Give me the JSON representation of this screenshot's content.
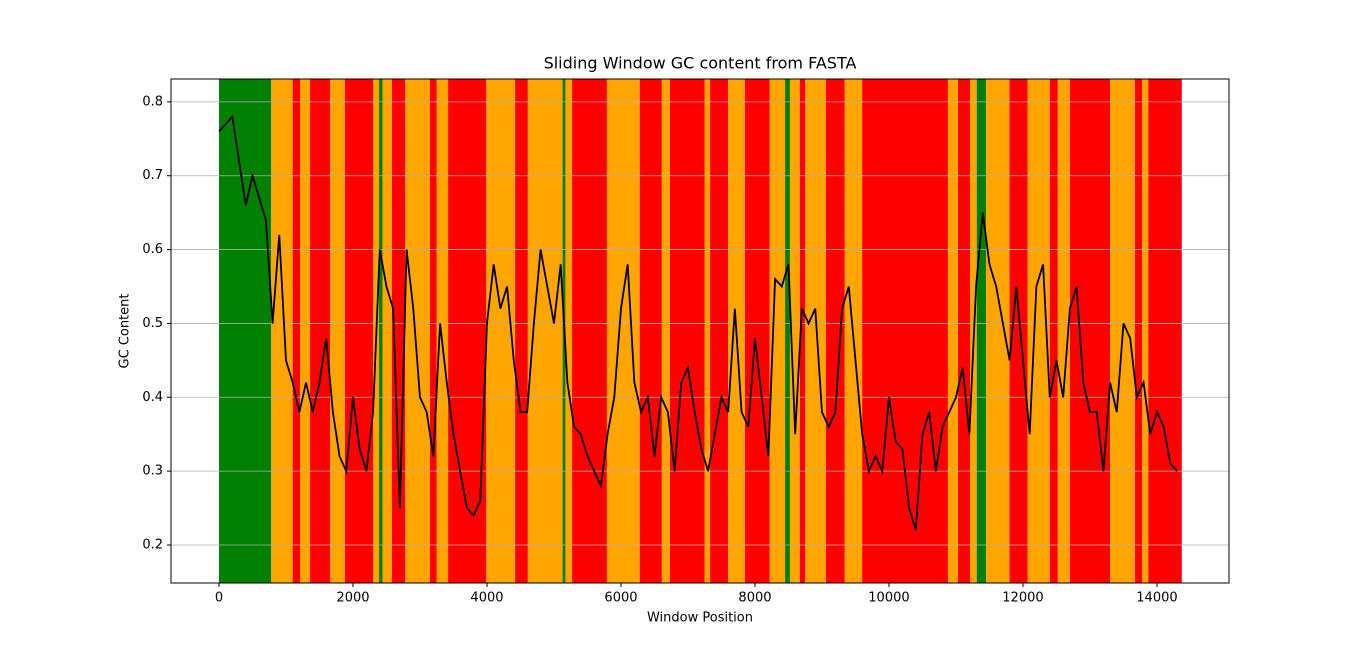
{
  "chart_data": {
    "type": "line",
    "title": "Sliding Window GC content from FASTA",
    "xlabel": "Window Position",
    "ylabel": "GC Content",
    "xlim": [
      -716,
      15075
    ],
    "ylim": [
      0.1485,
      0.831
    ],
    "xticks": [
      0,
      2000,
      4000,
      6000,
      8000,
      10000,
      12000,
      14000
    ],
    "yticks": [
      0.2,
      0.3,
      0.4,
      0.5,
      0.6,
      0.7,
      0.8
    ],
    "grid": "y",
    "bands": [
      {
        "start": 0,
        "end": 780,
        "color": "green"
      },
      {
        "start": 780,
        "end": 940,
        "color": "orange"
      },
      {
        "start": 940,
        "end": 1100,
        "color": "orange"
      },
      {
        "start": 1100,
        "end": 1210,
        "color": "red"
      },
      {
        "start": 1210,
        "end": 1360,
        "color": "orange"
      },
      {
        "start": 1360,
        "end": 1660,
        "color": "red"
      },
      {
        "start": 1660,
        "end": 1880,
        "color": "orange"
      },
      {
        "start": 1880,
        "end": 2300,
        "color": "red"
      },
      {
        "start": 2300,
        "end": 2580,
        "color": "orange"
      },
      {
        "start": 2390,
        "end": 2440,
        "color": "green"
      },
      {
        "start": 2580,
        "end": 2780,
        "color": "red"
      },
      {
        "start": 2780,
        "end": 3150,
        "color": "orange"
      },
      {
        "start": 3150,
        "end": 3250,
        "color": "red"
      },
      {
        "start": 3250,
        "end": 3420,
        "color": "orange"
      },
      {
        "start": 3420,
        "end": 3990,
        "color": "red"
      },
      {
        "start": 3990,
        "end": 4420,
        "color": "orange"
      },
      {
        "start": 4420,
        "end": 4610,
        "color": "red"
      },
      {
        "start": 4610,
        "end": 5270,
        "color": "orange"
      },
      {
        "start": 5130,
        "end": 5170,
        "color": "green"
      },
      {
        "start": 5270,
        "end": 5790,
        "color": "red"
      },
      {
        "start": 5790,
        "end": 6280,
        "color": "orange"
      },
      {
        "start": 6280,
        "end": 6610,
        "color": "red"
      },
      {
        "start": 6610,
        "end": 6730,
        "color": "orange"
      },
      {
        "start": 6730,
        "end": 7250,
        "color": "red"
      },
      {
        "start": 7250,
        "end": 7330,
        "color": "orange"
      },
      {
        "start": 7330,
        "end": 7600,
        "color": "red"
      },
      {
        "start": 7600,
        "end": 7850,
        "color": "orange"
      },
      {
        "start": 7850,
        "end": 8220,
        "color": "red"
      },
      {
        "start": 8220,
        "end": 8670,
        "color": "orange"
      },
      {
        "start": 8450,
        "end": 8520,
        "color": "green"
      },
      {
        "start": 8670,
        "end": 8750,
        "color": "red"
      },
      {
        "start": 8750,
        "end": 9060,
        "color": "orange"
      },
      {
        "start": 9060,
        "end": 9340,
        "color": "red"
      },
      {
        "start": 9340,
        "end": 9600,
        "color": "orange"
      },
      {
        "start": 9600,
        "end": 10880,
        "color": "red"
      },
      {
        "start": 10880,
        "end": 11030,
        "color": "orange"
      },
      {
        "start": 11030,
        "end": 11210,
        "color": "red"
      },
      {
        "start": 11210,
        "end": 11310,
        "color": "orange"
      },
      {
        "start": 11310,
        "end": 11450,
        "color": "green"
      },
      {
        "start": 11450,
        "end": 11800,
        "color": "orange"
      },
      {
        "start": 11800,
        "end": 12070,
        "color": "red"
      },
      {
        "start": 12070,
        "end": 12400,
        "color": "orange"
      },
      {
        "start": 12400,
        "end": 12520,
        "color": "red"
      },
      {
        "start": 12520,
        "end": 12700,
        "color": "orange"
      },
      {
        "start": 12700,
        "end": 13300,
        "color": "red"
      },
      {
        "start": 13300,
        "end": 13670,
        "color": "orange"
      },
      {
        "start": 13670,
        "end": 13780,
        "color": "red"
      },
      {
        "start": 13780,
        "end": 13870,
        "color": "orange"
      },
      {
        "start": 13870,
        "end": 14370,
        "color": "red"
      }
    ],
    "x": [
      0,
      100,
      200,
      300,
      400,
      500,
      600,
      700,
      800,
      900,
      1000,
      1100,
      1200,
      1300,
      1400,
      1500,
      1600,
      1700,
      1800,
      1900,
      2000,
      2100,
      2200,
      2300,
      2400,
      2500,
      2600,
      2700,
      2800,
      2900,
      3000,
      3100,
      3200,
      3300,
      3400,
      3500,
      3600,
      3700,
      3800,
      3900,
      4000,
      4100,
      4200,
      4300,
      4400,
      4500,
      4600,
      4700,
      4800,
      4900,
      5000,
      5100,
      5200,
      5300,
      5400,
      5500,
      5600,
      5700,
      5800,
      5900,
      6000,
      6100,
      6200,
      6300,
      6400,
      6500,
      6600,
      6700,
      6800,
      6900,
      7000,
      7100,
      7200,
      7300,
      7400,
      7500,
      7600,
      7700,
      7800,
      7900,
      8000,
      8100,
      8200,
      8300,
      8400,
      8500,
      8600,
      8700,
      8800,
      8900,
      9000,
      9100,
      9200,
      9300,
      9400,
      9500,
      9600,
      9700,
      9800,
      9900,
      10000,
      10100,
      10200,
      10300,
      10400,
      10500,
      10600,
      10700,
      10800,
      10900,
      11000,
      11100,
      11200,
      11300,
      11400,
      11500,
      11600,
      11700,
      11800,
      11900,
      12000,
      12100,
      12200,
      12300,
      12400,
      12500,
      12600,
      12700,
      12800,
      12900,
      13000,
      13100,
      13200,
      13300,
      13400,
      13500,
      13600,
      13700,
      13800,
      13900,
      14000,
      14100,
      14200,
      14300
    ],
    "series": [
      {
        "color": "#000000",
        "values": [
          0.76,
          0.77,
          0.78,
          0.72,
          0.66,
          0.7,
          0.67,
          0.64,
          0.5,
          0.62,
          0.45,
          0.42,
          0.38,
          0.42,
          0.38,
          0.42,
          0.48,
          0.38,
          0.32,
          0.3,
          0.4,
          0.33,
          0.3,
          0.38,
          0.6,
          0.55,
          0.52,
          0.25,
          0.6,
          0.52,
          0.4,
          0.38,
          0.32,
          0.5,
          0.42,
          0.35,
          0.3,
          0.25,
          0.24,
          0.26,
          0.5,
          0.58,
          0.52,
          0.55,
          0.45,
          0.38,
          0.38,
          0.5,
          0.6,
          0.55,
          0.5,
          0.58,
          0.42,
          0.36,
          0.35,
          0.32,
          0.3,
          0.28,
          0.35,
          0.4,
          0.52,
          0.58,
          0.42,
          0.38,
          0.4,
          0.32,
          0.4,
          0.38,
          0.3,
          0.42,
          0.44,
          0.38,
          0.33,
          0.3,
          0.35,
          0.4,
          0.38,
          0.52,
          0.38,
          0.36,
          0.48,
          0.4,
          0.32,
          0.56,
          0.55,
          0.58,
          0.35,
          0.52,
          0.5,
          0.52,
          0.38,
          0.36,
          0.38,
          0.52,
          0.55,
          0.45,
          0.35,
          0.3,
          0.32,
          0.3,
          0.4,
          0.34,
          0.33,
          0.25,
          0.22,
          0.35,
          0.38,
          0.3,
          0.36,
          0.38,
          0.4,
          0.44,
          0.35,
          0.55,
          0.65,
          0.58,
          0.55,
          0.5,
          0.45,
          0.55,
          0.45,
          0.35,
          0.55,
          0.58,
          0.4,
          0.45,
          0.4,
          0.52,
          0.55,
          0.42,
          0.38,
          0.38,
          0.3,
          0.42,
          0.38,
          0.5,
          0.48,
          0.4,
          0.42,
          0.35,
          0.38,
          0.36,
          0.31,
          0.3
        ]
      }
    ]
  }
}
